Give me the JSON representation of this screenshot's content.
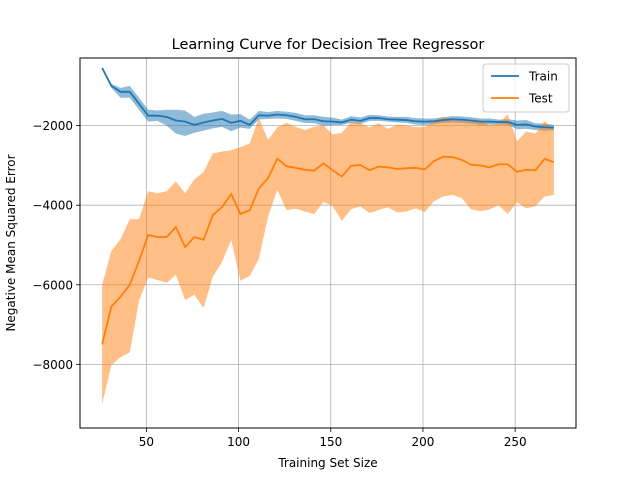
{
  "chart_data": {
    "type": "line",
    "title": "Learning Curve for Decision Tree Regressor",
    "xlabel": "Training Set Size",
    "ylabel": "Negative Mean Squared Error",
    "xlim": [
      14,
      283
    ],
    "ylim": [
      -9600,
      -300
    ],
    "xticks": [
      50,
      100,
      150,
      200,
      250
    ],
    "yticks": [
      -8000,
      -6000,
      -4000,
      -2000
    ],
    "xtick_labels": [
      "50",
      "100",
      "150",
      "200",
      "250"
    ],
    "ytick_labels": [
      "−8000",
      "−6000",
      "−4000",
      "−2000"
    ],
    "grid": true,
    "legend_position": "upper-right",
    "x": [
      26,
      31,
      36,
      41,
      46,
      51,
      56,
      61,
      66,
      71,
      76,
      81,
      86,
      91,
      96,
      101,
      106,
      111,
      116,
      121,
      126,
      131,
      136,
      141,
      146,
      151,
      156,
      161,
      166,
      171,
      176,
      181,
      186,
      191,
      196,
      201,
      206,
      211,
      216,
      221,
      226,
      231,
      236,
      241,
      246,
      251,
      256,
      261,
      266,
      271
    ],
    "series": [
      {
        "name": "Train",
        "color": "#1f77b4",
        "mean": [
          -550,
          -1000,
          -1150,
          -1150,
          -1450,
          -1750,
          -1750,
          -1780,
          -1870,
          -1900,
          -1980,
          -1920,
          -1870,
          -1830,
          -1930,
          -1880,
          -1980,
          -1740,
          -1750,
          -1720,
          -1740,
          -1780,
          -1840,
          -1840,
          -1890,
          -1900,
          -1920,
          -1850,
          -1880,
          -1810,
          -1810,
          -1840,
          -1850,
          -1860,
          -1890,
          -1900,
          -1890,
          -1860,
          -1840,
          -1850,
          -1870,
          -1900,
          -1900,
          -1910,
          -1910,
          -1980,
          -1970,
          -2020,
          -2040,
          -2050
        ],
        "lower": [
          -550,
          -1050,
          -1300,
          -1300,
          -1600,
          -1900,
          -1880,
          -2000,
          -2200,
          -2260,
          -2180,
          -2130,
          -2070,
          -2030,
          -2140,
          -2050,
          -2080,
          -1850,
          -1830,
          -1820,
          -1830,
          -1880,
          -1930,
          -1940,
          -2000,
          -1990,
          -1980,
          -1930,
          -1960,
          -1880,
          -1880,
          -1900,
          -1920,
          -1930,
          -1970,
          -1980,
          -1960,
          -1930,
          -1920,
          -1930,
          -1950,
          -1980,
          -1970,
          -1970,
          -1980,
          -2090,
          -2080,
          -2110,
          -2130,
          -2120
        ],
        "upper": [
          -550,
          -950,
          -1050,
          -1000,
          -1300,
          -1600,
          -1620,
          -1600,
          -1600,
          -1620,
          -1780,
          -1700,
          -1670,
          -1630,
          -1720,
          -1710,
          -1850,
          -1630,
          -1660,
          -1630,
          -1650,
          -1680,
          -1740,
          -1740,
          -1780,
          -1800,
          -1850,
          -1760,
          -1800,
          -1730,
          -1740,
          -1770,
          -1780,
          -1780,
          -1810,
          -1820,
          -1820,
          -1790,
          -1760,
          -1770,
          -1790,
          -1820,
          -1820,
          -1850,
          -1840,
          -1870,
          -1860,
          -1940,
          -1950,
          -1980
        ]
      },
      {
        "name": "Test",
        "color": "#ff7f0e",
        "mean": [
          -7500,
          -6550,
          -6300,
          -6000,
          -5400,
          -4750,
          -4800,
          -4800,
          -4550,
          -5050,
          -4800,
          -4870,
          -4250,
          -4050,
          -3720,
          -4220,
          -4130,
          -3580,
          -3320,
          -2830,
          -3020,
          -3060,
          -3110,
          -3130,
          -2950,
          -3120,
          -3280,
          -3010,
          -2990,
          -3120,
          -3030,
          -3050,
          -3090,
          -3070,
          -3060,
          -3100,
          -2890,
          -2780,
          -2790,
          -2860,
          -2980,
          -3000,
          -3050,
          -2970,
          -2970,
          -3160,
          -3110,
          -3120,
          -2830,
          -2920
        ],
        "lower": [
          -9000,
          -8020,
          -7820,
          -7700,
          -6400,
          -5820,
          -5880,
          -5950,
          -5750,
          -6380,
          -6250,
          -6580,
          -5800,
          -5430,
          -4870,
          -5900,
          -5780,
          -5350,
          -4280,
          -3620,
          -4120,
          -4090,
          -4160,
          -4220,
          -3920,
          -4020,
          -4390,
          -4100,
          -4030,
          -4200,
          -4120,
          -4050,
          -4180,
          -4160,
          -4080,
          -4170,
          -3900,
          -3780,
          -3740,
          -3820,
          -4100,
          -4150,
          -4110,
          -4000,
          -4220,
          -3930,
          -4080,
          -4020,
          -3780,
          -3740
        ],
        "upper": [
          -6000,
          -5150,
          -4850,
          -4350,
          -4350,
          -3650,
          -3700,
          -3650,
          -3400,
          -3700,
          -3350,
          -3170,
          -2700,
          -2650,
          -2620,
          -2540,
          -2450,
          -1810,
          -2360,
          -2040,
          -1930,
          -2030,
          -2110,
          -2030,
          -1990,
          -2220,
          -2180,
          -1910,
          -1940,
          -2040,
          -1940,
          -2080,
          -1970,
          -1990,
          -2040,
          -2030,
          -1880,
          -1780,
          -1820,
          -1900,
          -1860,
          -1850,
          -1990,
          -1940,
          -1720,
          -2390,
          -2150,
          -2200,
          -1890,
          -2100
        ]
      }
    ]
  }
}
